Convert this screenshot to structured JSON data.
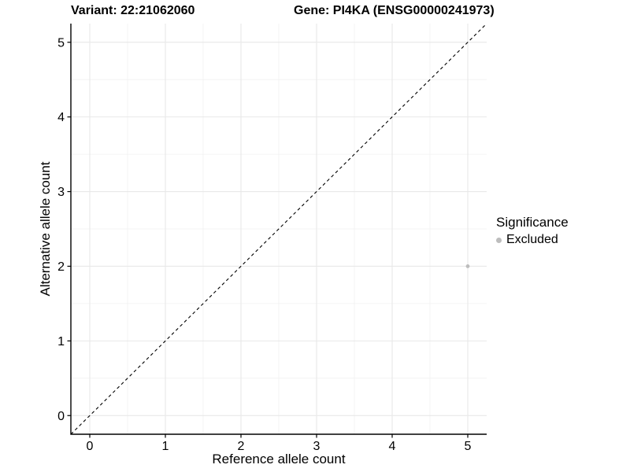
{
  "page": {
    "background": "#ffffff"
  },
  "chart_data": {
    "type": "scatter",
    "title_left": "Variant: 22:21062060",
    "title_right": "Gene: PI4KA (ENSG00000241973)",
    "xlabel": "Reference allele count",
    "ylabel": "Alternative allele count",
    "xlim": [
      -0.25,
      5.25
    ],
    "ylim": [
      -0.25,
      5.25
    ],
    "xticks": [
      0,
      1,
      2,
      3,
      4,
      5
    ],
    "yticks": [
      0,
      1,
      2,
      3,
      4,
      5
    ],
    "minor_xticks": [
      0.5,
      1.5,
      2.5,
      3.5,
      4.5
    ],
    "minor_yticks": [
      0.5,
      1.5,
      2.5,
      3.5,
      4.5
    ],
    "grid": {
      "show": true,
      "major_color": "#e8e8e8",
      "minor_color": "#f1f1f1"
    },
    "axis_color": "#000000",
    "identity_line": {
      "from": -0.25,
      "to": 5.25,
      "style": "dashed",
      "color": "#000000"
    },
    "series": [
      {
        "name": "Excluded",
        "color": "#bdbdbd",
        "point_radius": 2.4,
        "points": [
          {
            "x": 5,
            "y": 2
          }
        ]
      }
    ],
    "legend": {
      "title": "Significance",
      "position": "right",
      "entries": [
        {
          "label": "Excluded",
          "color": "#bdbdbd"
        }
      ]
    }
  }
}
